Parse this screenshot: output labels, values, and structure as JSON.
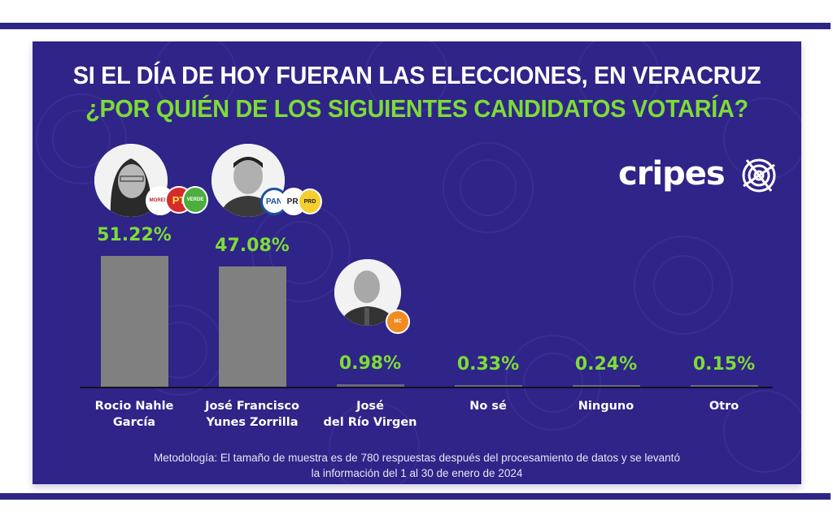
{
  "header": {
    "title": "SI EL DÍA DE HOY FUERAN LAS ELECCIONES, EN VERACRUZ",
    "question": "¿POR QUIÉN DE LOS SIGUIENTES CANDIDATOS VOTARÍA?"
  },
  "brand": {
    "logo_text": "cripes"
  },
  "colors": {
    "panel": "#2f2487",
    "frame": "#2e2586",
    "accent_green": "#7ddc36",
    "bar": "#808080"
  },
  "candidates": [
    {
      "name_line1": "Rocio Nahle",
      "name_line2": "García",
      "label": "51.22%",
      "parties": [
        "MORENA",
        "PT",
        "VERDE"
      ]
    },
    {
      "name_line1": "José Francisco",
      "name_line2": "Yunes Zorrilla",
      "label": "47.08%",
      "parties": [
        "PAN",
        "PRI",
        "PRD"
      ]
    },
    {
      "name_line1": "José",
      "name_line2": "del Río Virgen",
      "label": "0.98%",
      "parties": [
        "MC"
      ]
    },
    {
      "name_line1": "No sé",
      "name_line2": "",
      "label": "0.33%"
    },
    {
      "name_line1": "Ninguno",
      "name_line2": "",
      "label": "0.24%"
    },
    {
      "name_line1": "Otro",
      "name_line2": "",
      "label": "0.15%"
    }
  ],
  "chart_data": {
    "type": "bar",
    "title": "SI EL DÍA DE HOY FUERAN LAS ELECCIONES, EN VERACRUZ ¿POR QUIÉN DE LOS SIGUIENTES CANDIDATOS VOTARÍA?",
    "categories": [
      "Rocio Nahle García",
      "José Francisco Yunes Zorrilla",
      "José del Río Virgen",
      "No sé",
      "Ninguno",
      "Otro"
    ],
    "values": [
      51.22,
      47.08,
      0.98,
      0.33,
      0.24,
      0.15
    ],
    "unit": "%",
    "xlabel": "",
    "ylabel": "",
    "ylim": [
      0,
      55
    ],
    "grid": false,
    "legend": "none"
  },
  "footer": {
    "methodology_line1": "Metodología: El tamaño de muestra es de 780 respuestas después del procesamiento de datos y se levantó",
    "methodology_line2": "la información del 1 al 30 de enero de 2024"
  }
}
